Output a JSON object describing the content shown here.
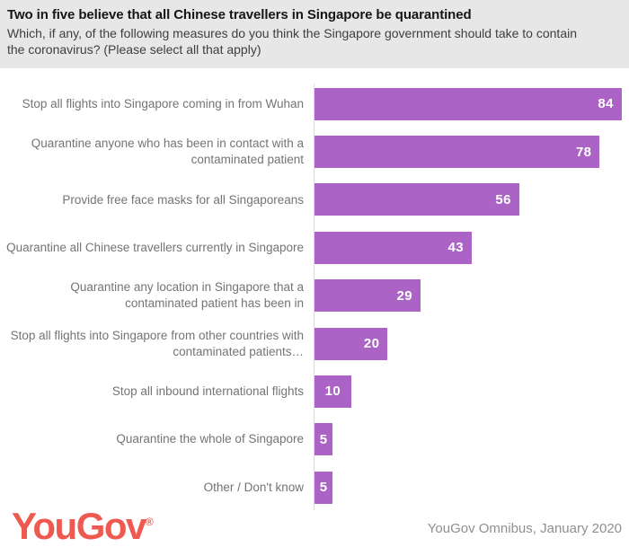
{
  "chart_data": {
    "type": "bar",
    "orientation": "horizontal",
    "title": "Two in five believe that all Chinese travellers in Singapore be quarantined",
    "subtitle": "Which, if any, of the following measures do you think the Singapore government should take to contain the coronavirus? (Please select all that apply)",
    "categories": [
      "Stop all flights into Singapore coming in from Wuhan",
      "Quarantine anyone who has been in contact with a contaminated patient",
      "Provide free face masks for all Singaporeans",
      "Quarantine all Chinese travellers  currently in Singapore",
      "Quarantine any location in Singapore that a contaminated patient has been in",
      "Stop all flights into Singapore from other countries with contaminated patients…",
      "Stop all inbound international flights",
      "Quarantine the whole of Singapore",
      "Other / Don't know"
    ],
    "values": [
      84,
      78,
      56,
      43,
      29,
      20,
      10,
      5,
      5
    ],
    "xlim": [
      0,
      86
    ],
    "bar_color": "#ab63c5",
    "value_label_color": "#ffffff",
    "value_label_position": "inside-end",
    "grid": false,
    "legend": false
  },
  "footer": {
    "logo_text": "YouGov",
    "registered_mark": "®",
    "logo_color": "#ee5a50",
    "attribution": "YouGov Omnibus, January 2020"
  }
}
